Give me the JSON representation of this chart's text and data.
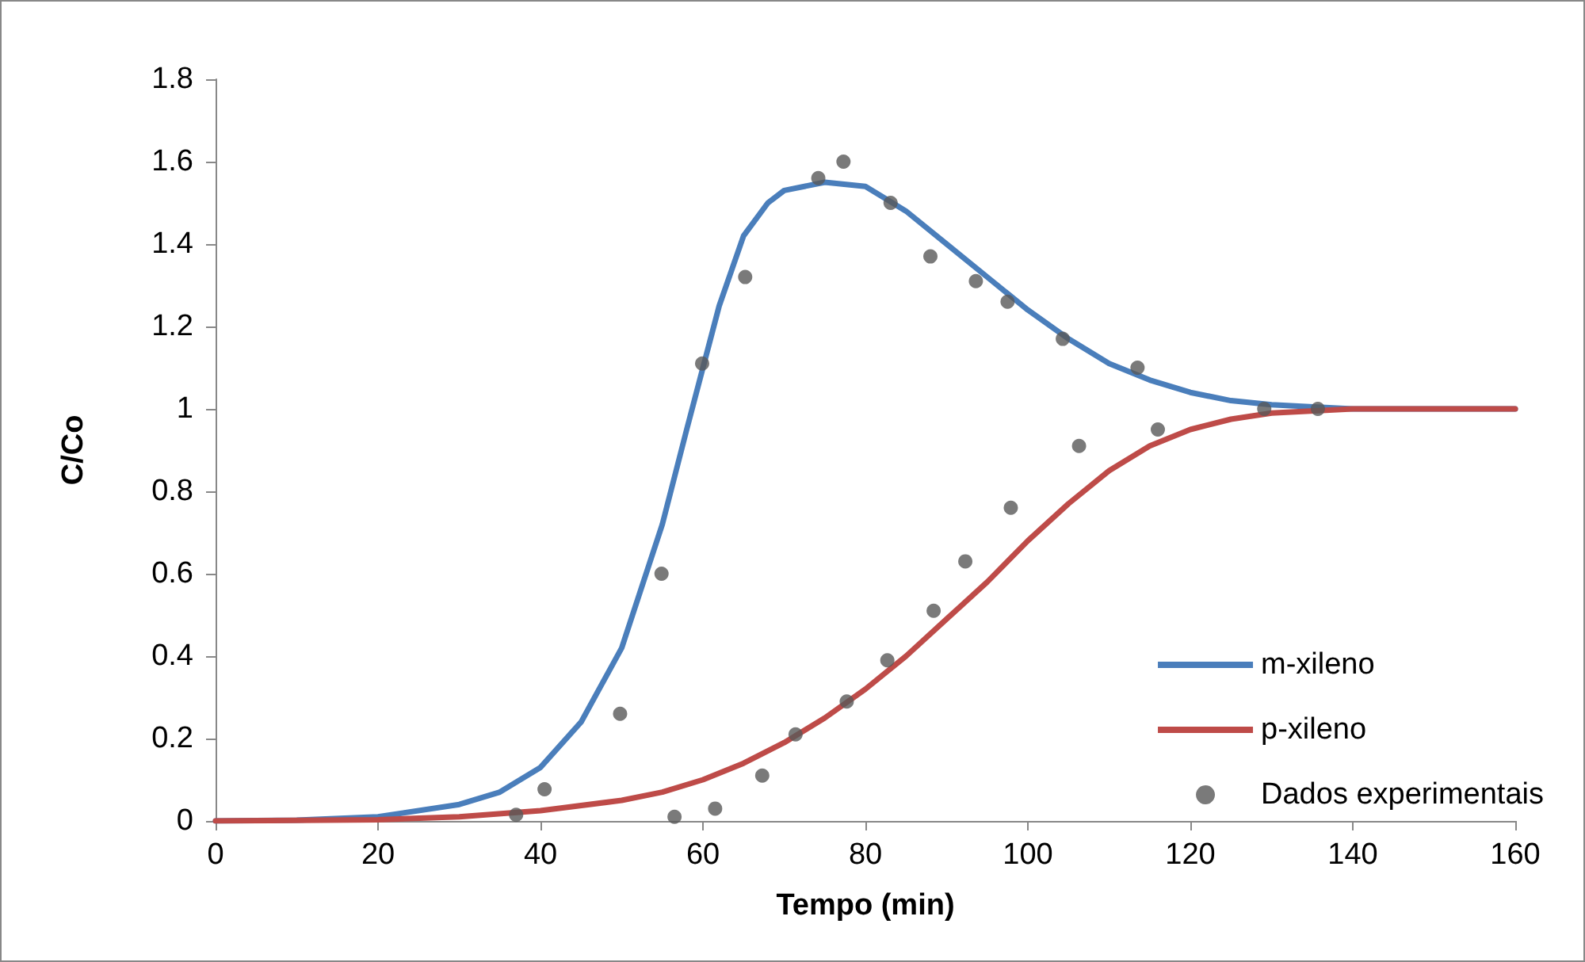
{
  "chart_data": {
    "type": "line",
    "xlabel": "Tempo (min)",
    "ylabel": "C/Co",
    "xlim": [
      0,
      160
    ],
    "xticks": [
      0,
      20,
      40,
      60,
      80,
      100,
      120,
      140,
      160
    ],
    "ylim": [
      0,
      1.8
    ],
    "yticks": [
      0,
      0.2,
      0.4,
      0.6,
      0.8,
      1,
      1.2,
      1.4,
      1.6,
      1.8
    ],
    "grid": false,
    "legend": "bottom right",
    "series": [
      {
        "name": "m-xileno",
        "marker": "none",
        "line_style": "solid",
        "color": "#4a7ebb",
        "x": [
          0,
          10,
          20,
          30,
          35,
          40,
          45,
          50,
          55,
          58,
          60,
          62,
          65,
          68,
          70,
          75,
          80,
          85,
          90,
          95,
          100,
          105,
          110,
          115,
          120,
          125,
          130,
          140,
          160
        ],
        "values": [
          0,
          0.002,
          0.01,
          0.04,
          0.07,
          0.13,
          0.24,
          0.42,
          0.72,
          0.95,
          1.1,
          1.25,
          1.42,
          1.5,
          1.53,
          1.55,
          1.54,
          1.48,
          1.4,
          1.32,
          1.24,
          1.17,
          1.11,
          1.07,
          1.04,
          1.02,
          1.01,
          1,
          1
        ]
      },
      {
        "name": "p-xileno",
        "marker": "none",
        "line_style": "solid",
        "color": "#be4b48",
        "x": [
          0,
          20,
          30,
          40,
          50,
          55,
          60,
          65,
          70,
          75,
          80,
          85,
          90,
          95,
          100,
          105,
          110,
          115,
          120,
          125,
          130,
          140,
          160
        ],
        "values": [
          0,
          0.003,
          0.01,
          0.025,
          0.05,
          0.07,
          0.1,
          0.14,
          0.19,
          0.25,
          0.32,
          0.4,
          0.49,
          0.58,
          0.68,
          0.77,
          0.85,
          0.91,
          0.95,
          0.975,
          0.99,
          1,
          1
        ]
      },
      {
        "name": "Dados experimentais",
        "type": "scatter",
        "marker": "circle",
        "color": "#595959",
        "x": [
          37,
          40.5,
          49.8,
          54.9,
          56.5,
          59.9,
          61.5,
          65.2,
          67.3,
          71.4,
          74.2,
          77.7,
          77.3,
          83.1,
          82.7,
          88,
          88.4,
          93.6,
          92.3,
          97.5,
          97.9,
          104.3,
          106.3,
          113.5,
          116,
          129.1,
          135.7
        ],
        "values": [
          0.015,
          0.077,
          0.26,
          0.6,
          0.01,
          1.11,
          0.03,
          1.32,
          0.11,
          0.21,
          1.56,
          0.29,
          1.6,
          1.5,
          0.39,
          1.37,
          0.51,
          1.31,
          0.63,
          1.26,
          0.76,
          1.17,
          0.91,
          1.1,
          0.95,
          1,
          1
        ]
      }
    ]
  }
}
